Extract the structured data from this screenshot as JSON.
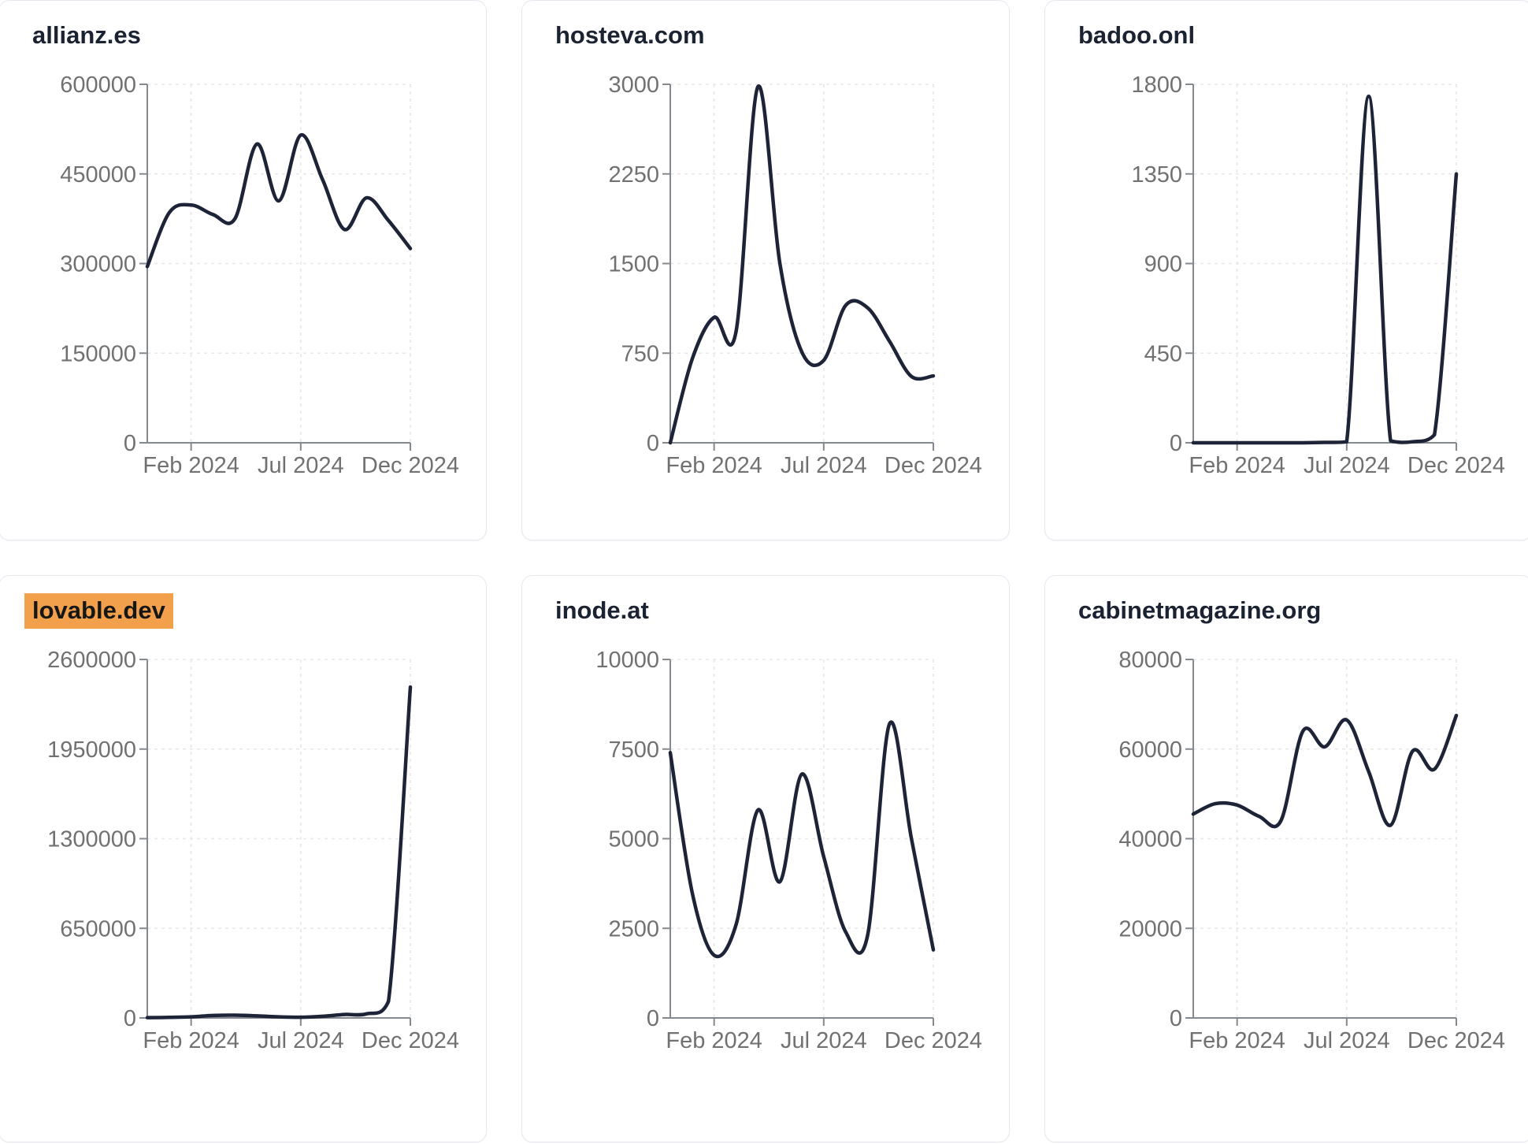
{
  "page": {
    "background": "#ffffff",
    "card_border": "#e4e9f0",
    "title_color": "#1b2232",
    "highlight_bg": "#f2a04b",
    "highlight_text": "#161616",
    "line_color": "#1e2438",
    "axis_color": "#84888f",
    "grid_color": "#e7e7e7",
    "tick_label_color": "#717171"
  },
  "x_axis": {
    "tick_labels": [
      "Feb 2024",
      "Jul 2024",
      "Dec 2024"
    ],
    "tick_month_index": [
      2,
      7,
      12
    ],
    "months_total": 12
  },
  "chart_data": [
    {
      "type": "line",
      "title": "allianz.es",
      "highlighted": false,
      "x": "monthly, Dec 2023 - Dec 2024",
      "x_tick_labels": [
        "Feb 2024",
        "Jul 2024",
        "Dec 2024"
      ],
      "y_ticks": [
        0,
        150000,
        300000,
        450000,
        600000
      ],
      "ylim": [
        0,
        600000
      ],
      "values": [
        295000,
        385000,
        398000,
        382000,
        375000,
        500000,
        405000,
        515000,
        440000,
        357000,
        410000,
        372000,
        325000
      ],
      "grid": "dashed"
    },
    {
      "type": "line",
      "title": "hosteva.com",
      "highlighted": false,
      "x": "monthly, Dec 2023 - Dec 2024",
      "x_tick_labels": [
        "Feb 2024",
        "Jul 2024",
        "Dec 2024"
      ],
      "y_ticks": [
        0,
        750,
        1500,
        2250,
        3000
      ],
      "ylim": [
        0,
        3000
      ],
      "values": [
        0,
        700,
        1050,
        930,
        2980,
        1500,
        760,
        690,
        1150,
        1130,
        850,
        555,
        560
      ],
      "grid": "dashed"
    },
    {
      "type": "line",
      "title": "badoo.onl",
      "highlighted": false,
      "x": "monthly, Dec 2023 - Dec 2024",
      "x_tick_labels": [
        "Feb 2024",
        "Jul 2024",
        "Dec 2024"
      ],
      "y_ticks": [
        0,
        450,
        900,
        1350,
        1800
      ],
      "ylim": [
        0,
        1800
      ],
      "values": [
        0,
        0,
        0,
        0,
        0,
        0,
        2,
        5,
        1740,
        10,
        5,
        40,
        1350
      ],
      "grid": "dashed"
    },
    {
      "type": "line",
      "title": "lovable.dev",
      "highlighted": true,
      "x": "monthly, Dec 2023 - Dec 2024",
      "x_tick_labels": [
        "Feb 2024",
        "Jul 2024",
        "Dec 2024"
      ],
      "y_ticks": [
        0,
        650000,
        1300000,
        1950000,
        2600000
      ],
      "ylim": [
        0,
        2600000
      ],
      "values": [
        2000,
        4000,
        8000,
        18000,
        20000,
        15000,
        8000,
        5000,
        12000,
        25000,
        30000,
        120000,
        2400000
      ],
      "grid": "dashed"
    },
    {
      "type": "line",
      "title": "inode.at",
      "highlighted": false,
      "x": "monthly, Dec 2023 - Dec 2024",
      "x_tick_labels": [
        "Feb 2024",
        "Jul 2024",
        "Dec 2024"
      ],
      "y_ticks": [
        0,
        2500,
        5000,
        7500,
        10000
      ],
      "ylim": [
        0,
        10000
      ],
      "values": [
        7400,
        3500,
        1750,
        2600,
        5800,
        3800,
        6800,
        4500,
        2400,
        2300,
        8200,
        5000,
        1900
      ],
      "grid": "dashed"
    },
    {
      "type": "line",
      "title": "cabinetmagazine.org",
      "highlighted": false,
      "x": "monthly, Dec 2023 - Dec 2024",
      "x_tick_labels": [
        "Feb 2024",
        "Jul 2024",
        "Dec 2024"
      ],
      "y_ticks": [
        0,
        20000,
        40000,
        60000,
        80000
      ],
      "ylim": [
        0,
        80000
      ],
      "values": [
        45500,
        47800,
        47500,
        45000,
        44000,
        64000,
        60500,
        66500,
        55000,
        43000,
        59500,
        55500,
        67500
      ],
      "grid": "dashed"
    }
  ]
}
